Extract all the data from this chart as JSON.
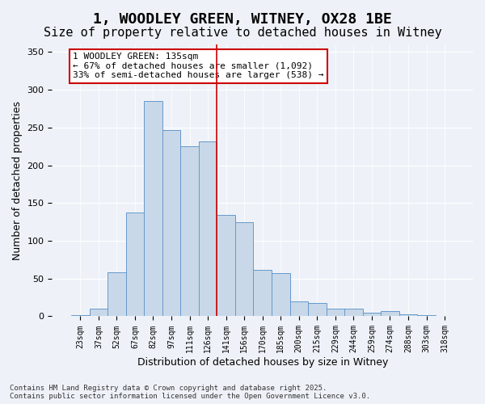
{
  "title": "1, WOODLEY GREEN, WITNEY, OX28 1BE",
  "subtitle": "Size of property relative to detached houses in Witney",
  "xlabel": "Distribution of detached houses by size in Witney",
  "ylabel": "Number of detached properties",
  "bar_color": "#c8d8e8",
  "bar_edge_color": "#6699cc",
  "categories": [
    "23sqm",
    "37sqm",
    "52sqm",
    "67sqm",
    "82sqm",
    "97sqm",
    "111sqm",
    "126sqm",
    "141sqm",
    "156sqm",
    "170sqm",
    "185sqm",
    "200sqm",
    "215sqm",
    "229sqm",
    "244sqm",
    "259sqm",
    "274sqm",
    "288sqm",
    "303sqm",
    "318sqm"
  ],
  "values": [
    2,
    10,
    58,
    137,
    285,
    247,
    225,
    232,
    134,
    125,
    62,
    57,
    20,
    18,
    10,
    10,
    5,
    7,
    3,
    2,
    1
  ],
  "vline_color": "#cc0000",
  "annotation_text": "1 WOODLEY GREEN: 135sqm\n← 67% of detached houses are smaller (1,092)\n33% of semi-detached houses are larger (538) →",
  "ylim": [
    0,
    360
  ],
  "yticks": [
    0,
    50,
    100,
    150,
    200,
    250,
    300,
    350
  ],
  "bg_color": "#eef2f8",
  "footer": "Contains HM Land Registry data © Crown copyright and database right 2025.\nContains public sector information licensed under the Open Government Licence v3.0.",
  "title_fontsize": 13,
  "subtitle_fontsize": 11,
  "xlabel_fontsize": 9,
  "ylabel_fontsize": 9,
  "tick_fontsize": 7,
  "annotation_fontsize": 8
}
